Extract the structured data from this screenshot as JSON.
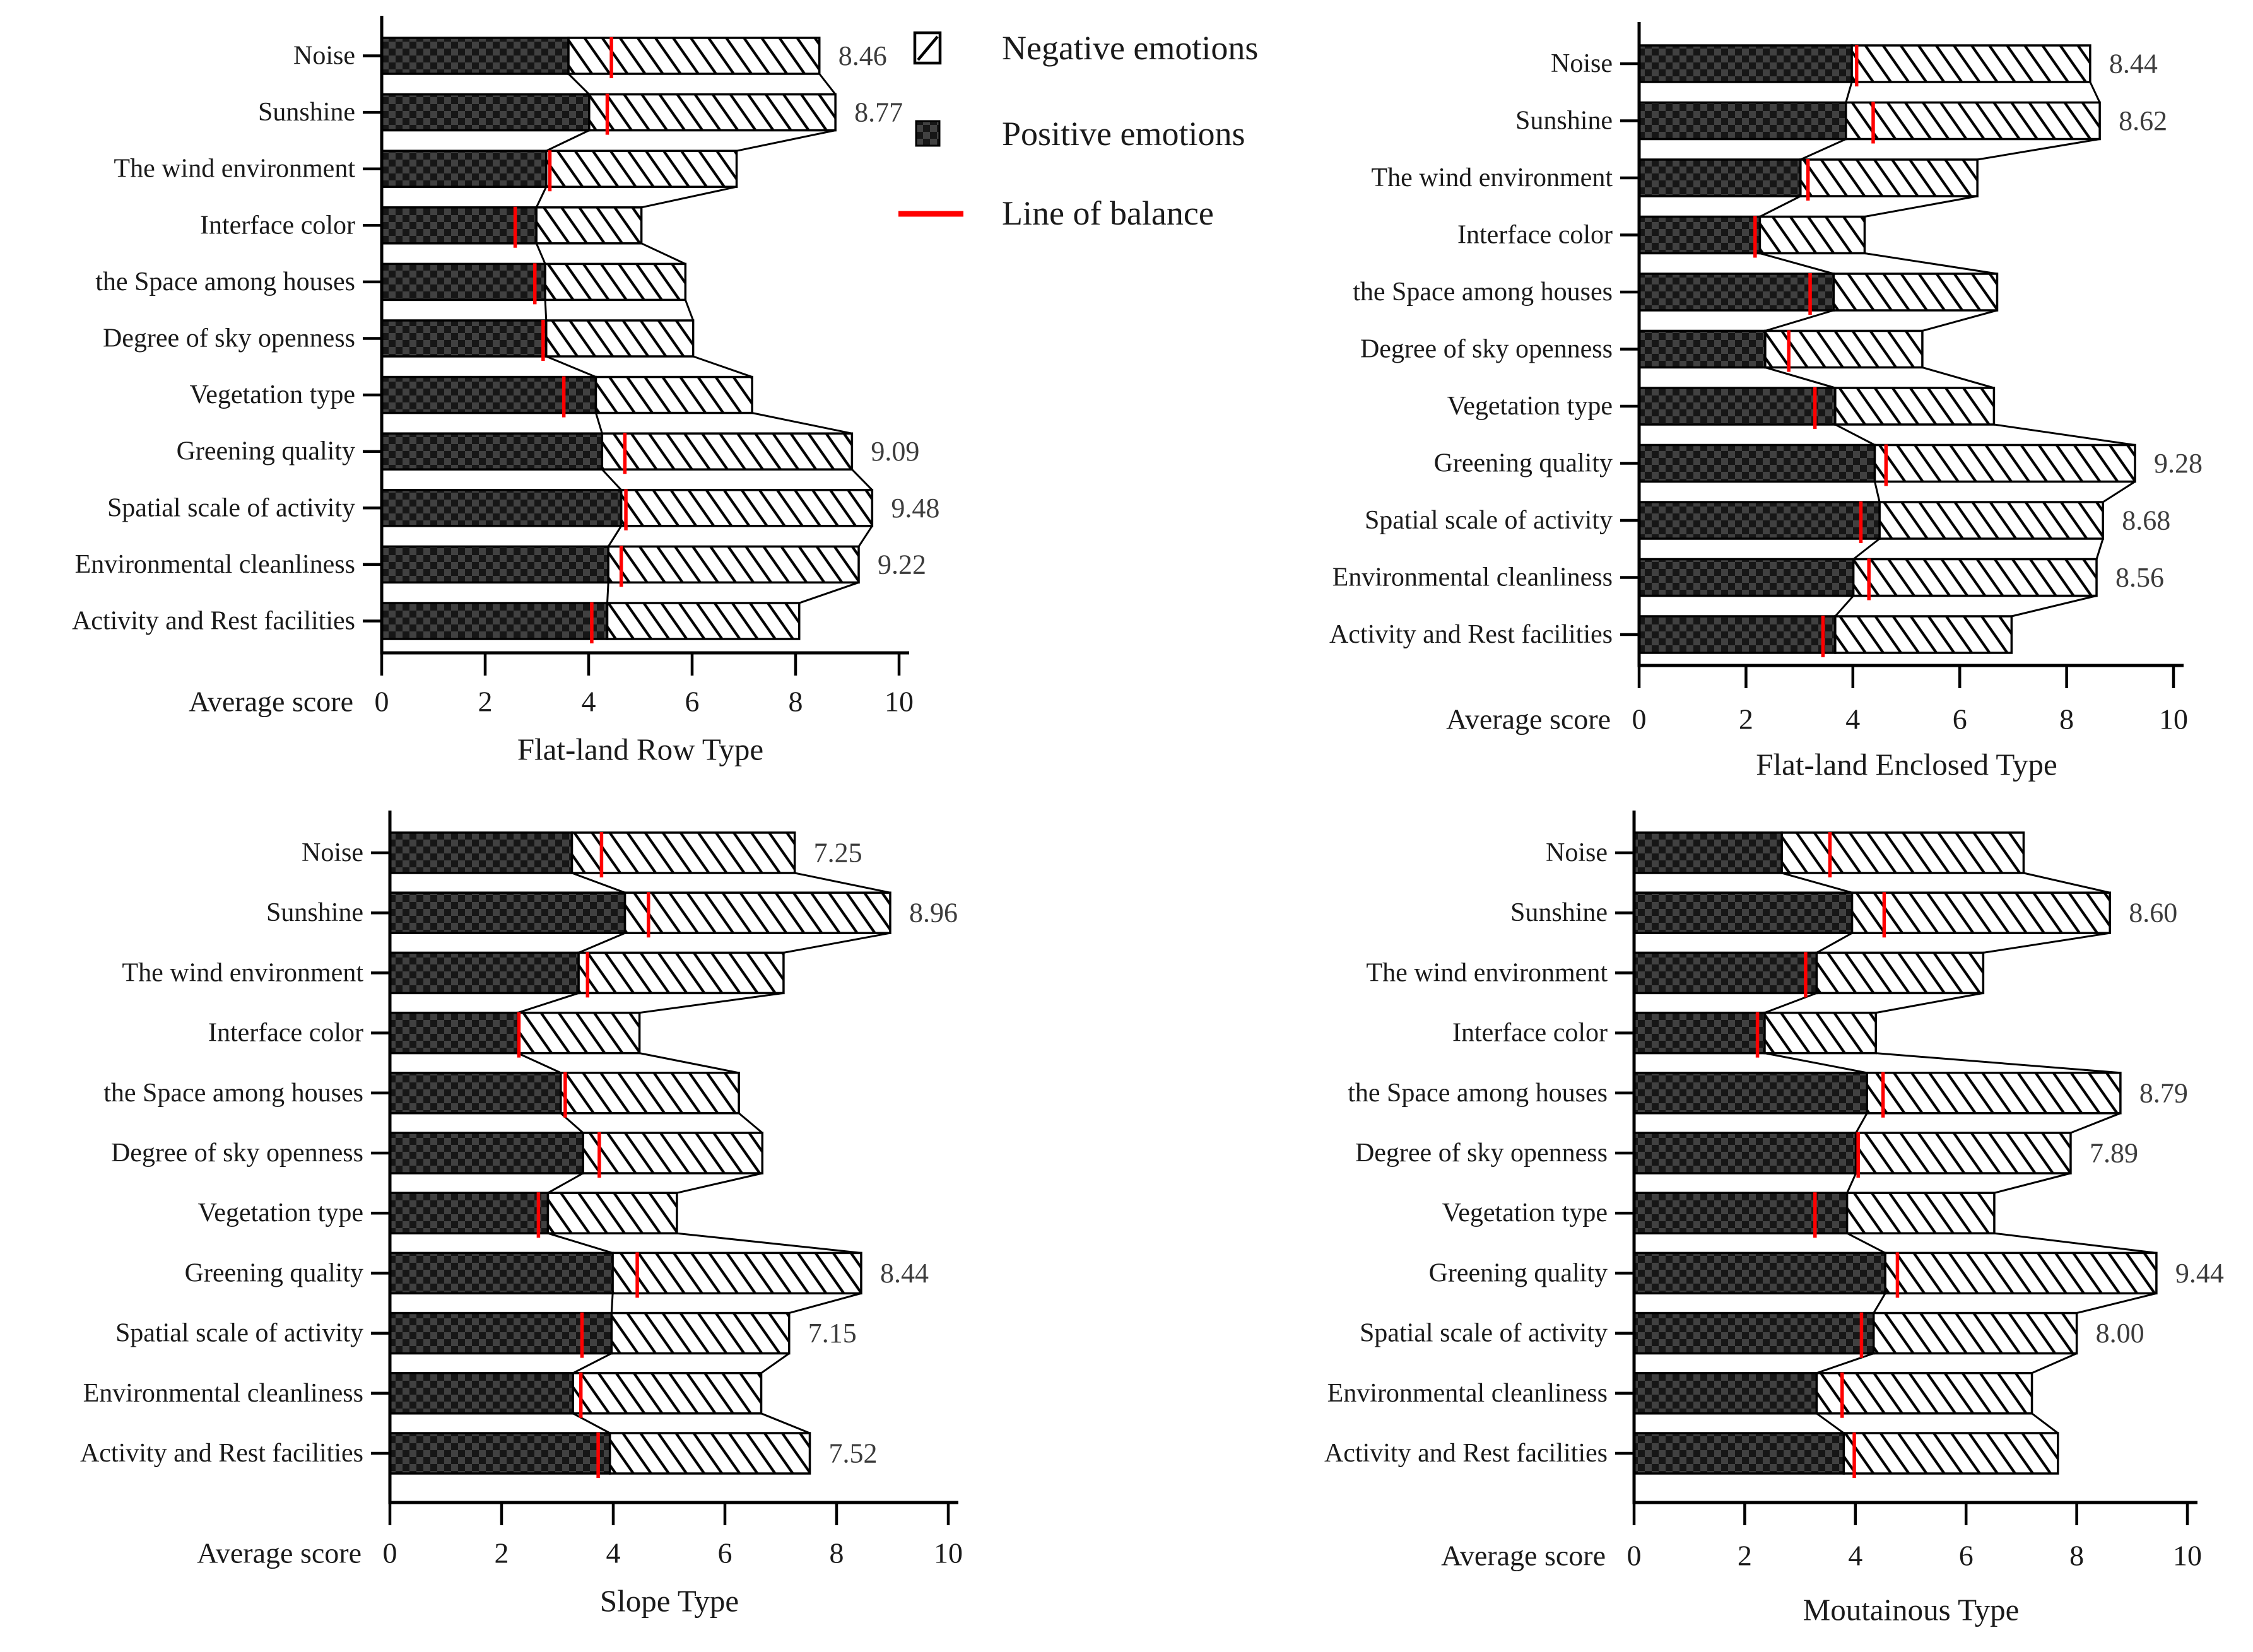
{
  "page": {
    "background": "#ffffff"
  },
  "colors": {
    "balance_line": "#ff0000",
    "outline": "#000000",
    "value_label": "#3c3c3c",
    "text": "#1a1a1a",
    "positive_fill_dark": "#161616",
    "positive_fill_light": "#414141",
    "negative_fill": "#ffffff"
  },
  "legend": {
    "items": [
      {
        "id": "negative",
        "label": "Negative emotions",
        "swatch": "diagonal-hatch"
      },
      {
        "id": "positive",
        "label": "Positive emotions",
        "swatch": "dark-checker"
      },
      {
        "id": "balance",
        "label": "Line of balance",
        "swatch": "red-line"
      }
    ]
  },
  "axis": {
    "label": "Average score",
    "ticks": [
      "0",
      "2",
      "4",
      "6",
      "8",
      "10"
    ],
    "xlim": [
      0,
      10
    ]
  },
  "chart_data": [
    {
      "type": "bar",
      "orientation": "horizontal",
      "stacked": true,
      "title": "Flat-land Row Type",
      "xlabel": "Average score",
      "xlim": [
        0,
        10
      ],
      "legend_position": "top-right-of-panel",
      "grid": false,
      "categories": [
        "Noise",
        "Sunshine",
        "The wind environment",
        "Interface color",
        "the Space among houses",
        "Degree of sky openness",
        "Vegetation type",
        "Greening quality",
        "Spatial scale of activity",
        "Environmental cleanliness",
        "Activity and Rest facilities"
      ],
      "series": [
        {
          "name": "Positive emotions",
          "values": [
            3.61,
            4.01,
            3.18,
            2.99,
            3.16,
            3.18,
            4.14,
            4.26,
            4.63,
            4.38,
            4.36
          ]
        },
        {
          "name": "Negative emotions",
          "values": [
            4.85,
            4.76,
            3.68,
            2.03,
            2.71,
            2.84,
            3.02,
            4.83,
            4.85,
            4.84,
            3.71
          ]
        }
      ],
      "totals": [
        8.46,
        8.77,
        6.86,
        5.02,
        5.87,
        6.02,
        7.16,
        9.09,
        9.48,
        9.22,
        8.07
      ],
      "balance_line": [
        4.44,
        4.36,
        3.25,
        2.58,
        2.96,
        3.12,
        3.52,
        4.7,
        4.72,
        4.63,
        4.06
      ],
      "value_labels": [
        "8.46",
        "8.77",
        null,
        null,
        null,
        null,
        null,
        "9.09",
        "9.48",
        "9.22",
        null
      ]
    },
    {
      "type": "bar",
      "orientation": "horizontal",
      "stacked": true,
      "title": "Flat-land Enclosed Type",
      "xlabel": "Average score",
      "xlim": [
        0,
        10
      ],
      "grid": false,
      "categories": [
        "Noise",
        "Sunshine",
        "The wind environment",
        "Interface color",
        "the Space among houses",
        "Degree of sky openness",
        "Vegetation type",
        "Greening quality",
        "Spatial scale of activity",
        "Environmental cleanliness",
        "Activity and Rest facilities"
      ],
      "series": [
        {
          "name": "Positive emotions",
          "values": [
            3.98,
            3.87,
            3.02,
            2.26,
            3.64,
            2.36,
            3.67,
            4.41,
            4.5,
            4.01,
            3.67
          ]
        },
        {
          "name": "Negative emotions",
          "values": [
            4.46,
            4.75,
            3.31,
            1.96,
            3.06,
            2.94,
            2.97,
            4.87,
            4.18,
            4.55,
            3.3
          ]
        }
      ],
      "totals": [
        8.44,
        8.62,
        6.33,
        4.22,
        6.7,
        5.3,
        6.64,
        9.28,
        8.68,
        8.56,
        6.97
      ],
      "balance_line": [
        4.07,
        4.38,
        3.16,
        2.17,
        3.2,
        2.8,
        3.29,
        4.62,
        4.15,
        4.3,
        3.44
      ],
      "value_labels": [
        "8.44",
        "8.62",
        null,
        null,
        null,
        null,
        null,
        "9.28",
        "8.68",
        "8.56",
        null
      ]
    },
    {
      "type": "bar",
      "orientation": "horizontal",
      "stacked": true,
      "title": "Slope Type",
      "xlabel": "Average score",
      "xlim": [
        0,
        10
      ],
      "grid": false,
      "categories": [
        "Noise",
        "Sunshine",
        "The wind environment",
        "Interface color",
        "the Space among houses",
        "Degree of sky openness",
        "Vegetation type",
        "Greening quality",
        "Spatial scale of activity",
        "Environmental cleanliness",
        "Activity and Rest facilities"
      ],
      "series": [
        {
          "name": "Positive emotions",
          "values": [
            3.26,
            4.21,
            3.38,
            2.29,
            3.06,
            3.46,
            2.83,
            3.99,
            3.97,
            3.28,
            3.94
          ]
        },
        {
          "name": "Negative emotions",
          "values": [
            3.99,
            4.75,
            3.67,
            2.18,
            3.19,
            3.21,
            2.31,
            4.45,
            3.18,
            3.37,
            3.58
          ]
        }
      ],
      "totals": [
        7.25,
        8.96,
        7.05,
        4.47,
        6.25,
        6.67,
        5.14,
        8.44,
        7.15,
        6.65,
        7.52
      ],
      "balance_line": [
        3.79,
        4.63,
        3.54,
        2.31,
        3.14,
        3.75,
        2.66,
        4.43,
        3.44,
        3.42,
        3.73
      ],
      "value_labels": [
        "7.25",
        "8.96",
        null,
        null,
        null,
        null,
        null,
        "8.44",
        "7.15",
        null,
        "7.52"
      ]
    },
    {
      "type": "bar",
      "orientation": "horizontal",
      "stacked": true,
      "title": "Moutainous Type",
      "xlabel": "Average score",
      "xlim": [
        0,
        10
      ],
      "grid": false,
      "categories": [
        "Noise",
        "Sunshine",
        "The wind environment",
        "Interface color",
        "the Space among houses",
        "Degree of sky openness",
        "Vegetation type",
        "Greening quality",
        "Spatial scale of activity",
        "Environmental cleanliness",
        "Activity and Rest facilities"
      ],
      "series": [
        {
          "name": "Positive emotions",
          "values": [
            2.67,
            3.94,
            3.3,
            2.36,
            4.21,
            4.01,
            3.85,
            4.54,
            4.33,
            3.3,
            3.79
          ]
        },
        {
          "name": "Negative emotions",
          "values": [
            4.37,
            4.66,
            3.01,
            2.01,
            4.58,
            3.88,
            2.66,
            4.9,
            3.67,
            3.89,
            3.87
          ]
        }
      ],
      "totals": [
        7.04,
        8.6,
        6.31,
        4.37,
        8.79,
        7.89,
        6.51,
        9.44,
        8.0,
        7.19,
        7.66
      ],
      "balance_line": [
        3.54,
        4.52,
        3.1,
        2.23,
        4.5,
        4.05,
        3.27,
        4.76,
        4.11,
        3.76,
        3.98
      ],
      "value_labels": [
        null,
        "8.60",
        null,
        null,
        "8.79",
        "7.89",
        null,
        "9.44",
        "8.00",
        null,
        null
      ]
    }
  ]
}
